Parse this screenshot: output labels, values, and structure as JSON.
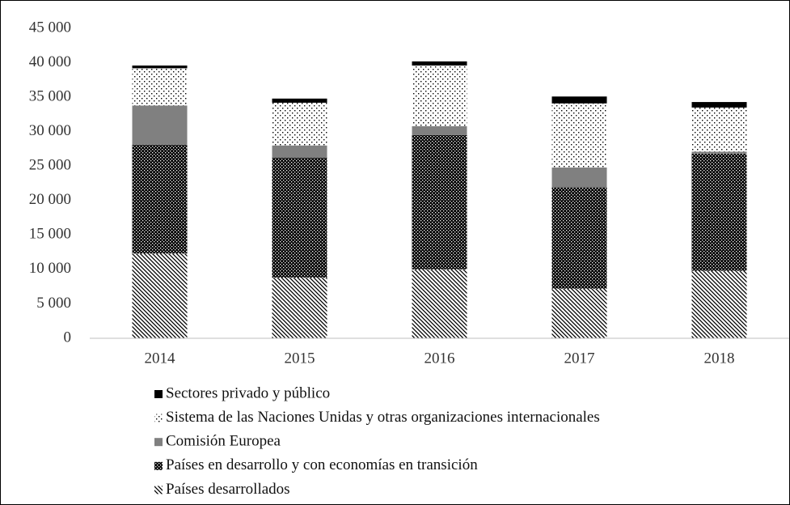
{
  "chart_data": {
    "type": "stacked_bar",
    "categories": [
      "2014",
      "2015",
      "2016",
      "2017",
      "2018"
    ],
    "series": [
      {
        "name": "Países desarrollados",
        "color": "#000000",
        "pattern": "diagonal",
        "values": [
          12300,
          8800,
          10000,
          7200,
          9800
        ]
      },
      {
        "name": "Países en desarrollo y con economías en transición",
        "color": "#000000",
        "pattern": "dense-dots",
        "values": [
          15800,
          17400,
          19500,
          14700,
          17000
        ]
      },
      {
        "name": "Comisión Europea",
        "color": "#808080",
        "pattern": "solid",
        "values": [
          5700,
          1800,
          1300,
          2900,
          300
        ]
      },
      {
        "name": "Sistema de las Naciones Unidas y otras organizaciones internacionales",
        "color": "#000000",
        "pattern": "sparse-dots",
        "values": [
          5400,
          6200,
          8800,
          9300,
          6400
        ]
      },
      {
        "name": "Sectores privado y público",
        "color": "#000000",
        "pattern": "solid",
        "values": [
          400,
          600,
          600,
          1000,
          800
        ]
      }
    ],
    "ylim": [
      0,
      45000
    ],
    "yticks": [
      0,
      {
        "value": 5000,
        "label": "5 000"
      },
      {
        "value": 10000,
        "label": "10 000"
      },
      {
        "value": 15000,
        "label": "15 000"
      },
      {
        "value": 20000,
        "label": "20 000"
      },
      {
        "value": 25000,
        "label": "25 000"
      },
      {
        "value": 30000,
        "label": "30 000"
      },
      {
        "value": 35000,
        "label": "35 000"
      },
      {
        "value": 40000,
        "label": "40 000"
      },
      {
        "value": 45000,
        "label": "45 000"
      }
    ],
    "legend": "bottom",
    "grid": false
  }
}
